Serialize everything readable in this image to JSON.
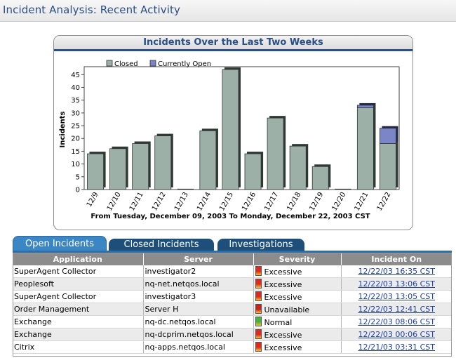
{
  "page": {
    "title": "Incident Analysis: Recent Activity"
  },
  "colors": {
    "closed": "#9cb0a8",
    "open": "#7b86c8",
    "header_blue": "#2a4f86"
  },
  "chart_data": {
    "type": "bar",
    "title": "Incidents Over the Last Two Weeks",
    "xlabel": "From Tuesday, December 09, 2003 To Monday, December 22, 2003 CST",
    "ylabel": "Incidents",
    "ylim": [
      0,
      47
    ],
    "yticks": [
      0,
      5,
      10,
      15,
      20,
      25,
      30,
      35,
      40,
      45
    ],
    "categories": [
      "12/9",
      "12/10",
      "12/11",
      "12/12",
      "12/13",
      "12/14",
      "12/15",
      "12/16",
      "12/17",
      "12/18",
      "12/19",
      "12/20",
      "12/21",
      "12/22"
    ],
    "series": [
      {
        "name": "Closed",
        "values": [
          14,
          16,
          18,
          21,
          0,
          23,
          47,
          14,
          28,
          17,
          9,
          0,
          32,
          18
        ]
      },
      {
        "name": "Currently Open",
        "values": [
          0,
          0,
          0,
          0,
          0,
          0,
          0,
          0,
          0,
          0,
          0,
          0,
          1,
          6
        ]
      }
    ],
    "stacked": true,
    "legend_position": "top-left",
    "grid": false
  },
  "tabs": [
    {
      "label": "Open Incidents",
      "active": true
    },
    {
      "label": "Closed Incidents",
      "active": false
    },
    {
      "label": "Investigations",
      "active": false
    }
  ],
  "table": {
    "columns": [
      "Application",
      "Server",
      "Severity",
      "Incident On"
    ],
    "rows": [
      {
        "application": "SuperAgent Collector",
        "server": "investigator2",
        "severity": "Excessive",
        "severity_color": "#e0281c",
        "incident_on": "12/22/03 16:35 CST"
      },
      {
        "application": "Peoplesoft",
        "server": "nq-net.netqos.local",
        "severity": "Excessive",
        "severity_color": "#e0281c",
        "incident_on": "12/22/03 13:06 CST"
      },
      {
        "application": "SuperAgent Collector",
        "server": "investigator3",
        "severity": "Excessive",
        "severity_color": "#e0281c",
        "incident_on": "12/22/03 13:05 CST"
      },
      {
        "application": "Order Management",
        "server": "Server H",
        "severity": "Unavailable",
        "severity_color": "#c8201a",
        "incident_on": "12/22/03 12:41 CST"
      },
      {
        "application": "Exchange",
        "server": "nq-dc.netqos.local",
        "severity": "Normal",
        "severity_color": "#46b43a",
        "incident_on": "12/22/03 08:06 CST"
      },
      {
        "application": "Exchange",
        "server": "nq-dcprim.netqos.local",
        "severity": "Excessive",
        "severity_color": "#e0281c",
        "incident_on": "12/22/03 00:06 CST"
      },
      {
        "application": "Citrix",
        "server": "nq-apps.netqos.local",
        "severity": "Excessive",
        "severity_color": "#e0281c",
        "incident_on": "12/21/03 03:31 CST"
      }
    ]
  }
}
